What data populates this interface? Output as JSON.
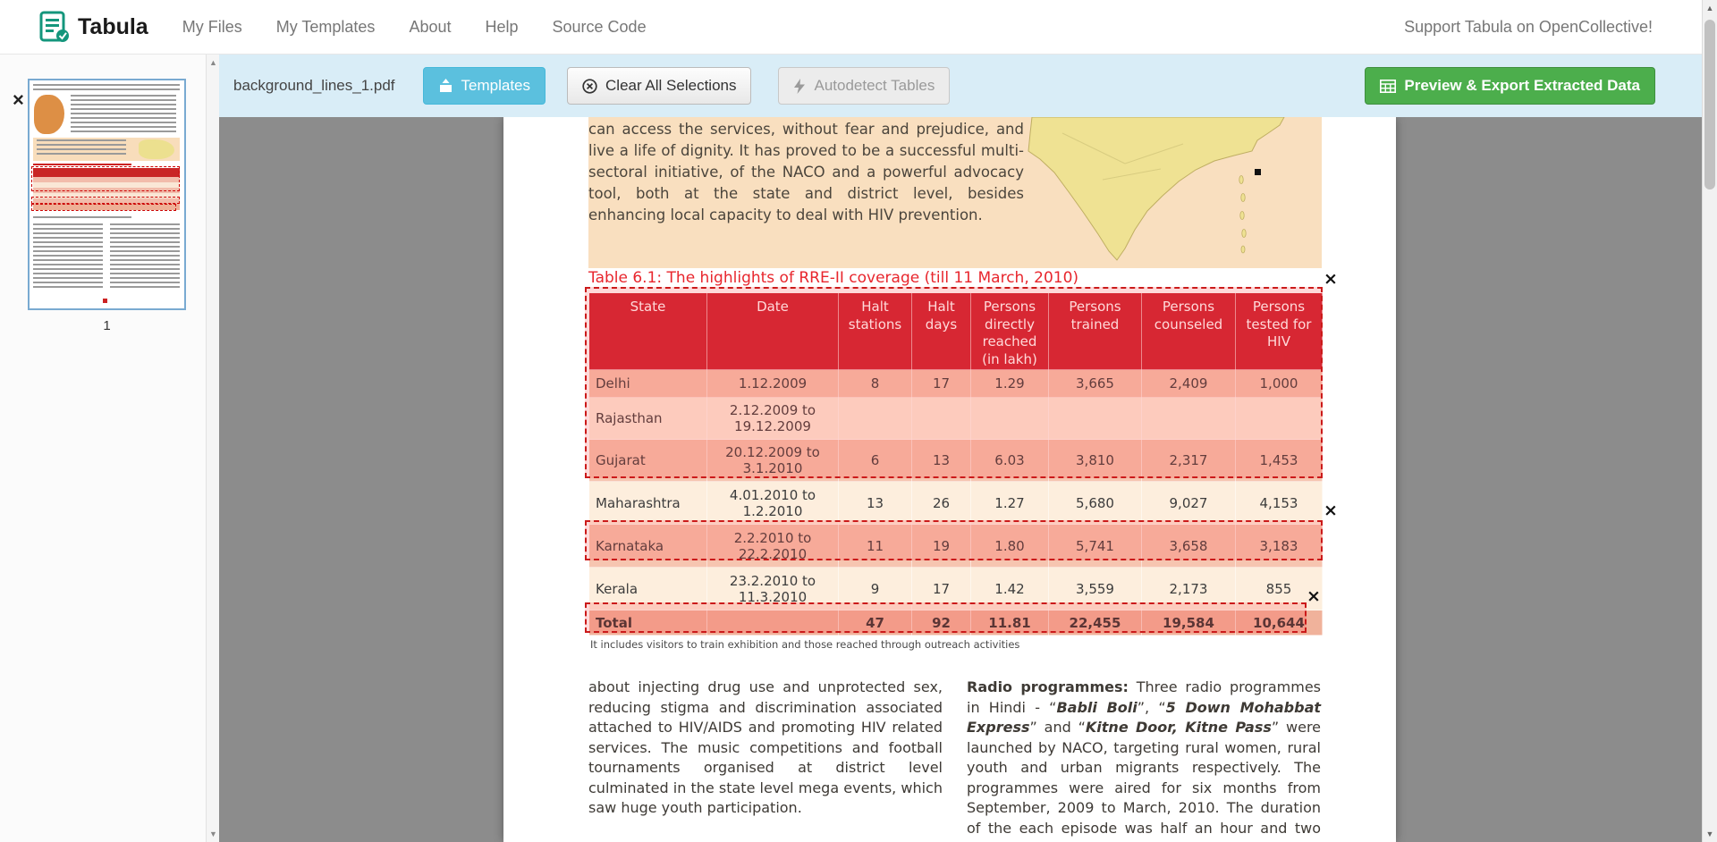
{
  "navbar": {
    "brand": "Tabula",
    "items": [
      {
        "label": "My Files"
      },
      {
        "label": "My Templates"
      },
      {
        "label": "About"
      },
      {
        "label": "Help"
      },
      {
        "label": "Source Code"
      }
    ],
    "right_text": "Support Tabula on OpenCollective!"
  },
  "toolbar": {
    "filename": "background_lines_1.pdf",
    "templates_label": "Templates",
    "clear_label": "Clear All Selections",
    "autodetect_label": "Autodetect Tables",
    "export_label": "Preview & Export Extracted Data"
  },
  "sidebar": {
    "page_number": "1"
  },
  "icons": {
    "close": "×",
    "scroll_up": "▲",
    "scroll_down": "▼"
  },
  "colors": {
    "toolbar_background": "#d9edf7",
    "templates_button": "#5bc0de",
    "export_button": "#4cae4c",
    "table_header_red": "#cd2130",
    "table_title_red": "#e8262d",
    "row_salmon": "#f6c5b0",
    "row_cream": "#fdeedd",
    "row_total": "#f0b29b",
    "selection_red": "#cb1a1a",
    "page_peach": "#f9dfbf",
    "map_yellow": "#efe293"
  },
  "document": {
    "intro_paragraph": "can access the services, without fear and prejudice, and live a life of dignity. It has proved to be a successful multi-sectoral initiative, of the NACO and a powerful advocacy tool, both at the state and district level, besides enhancing local capacity to deal with HIV prevention.",
    "table_title": "Table 6.1: The highlights of RRE-II coverage (till 11 March, 2010)",
    "footnote": "It includes visitors to train exhibition and those reached through outreach activities",
    "left_column_text": "about injecting drug use and unprotected sex, reducing stigma and discrimination associated attached to HIV/AIDS and promoting HIV related services. The music competitions and football tournaments organised at district level culminated in the state level mega events, which saw huge youth participation.",
    "right_column_segments": [
      {
        "text": "Radio programmes:",
        "bold": true
      },
      {
        "text": " Three radio programmes in Hindi - “"
      },
      {
        "text": "Babli Boli",
        "bold": true,
        "italic": true
      },
      {
        "text": "”, “"
      },
      {
        "text": "5 Down Mohabbat Express",
        "bold": true,
        "italic": true
      },
      {
        "text": "” and “"
      },
      {
        "text": "Kitne Door, Kitne Pass",
        "bold": true,
        "italic": true
      },
      {
        "text": "” were launched by NACO, targeting rural women, rural youth and urban migrants respectively. The programmes were aired for six months from September, 2009 to March, 2010. The duration of the each episode was half an hour and two episodes"
      }
    ]
  },
  "table": {
    "headers": [
      "State",
      "Date",
      "Halt stations",
      "Halt days",
      "Persons directly reached (in lakh)",
      "Persons trained",
      "Persons counseled",
      "Persons tested for HIV"
    ],
    "rows": [
      {
        "cells": [
          "Delhi",
          "1.12.2009",
          "8",
          "17",
          "1.29",
          "3,665",
          "2,409",
          "1,000"
        ],
        "shade": "salmon"
      },
      {
        "cells": [
          "Rajasthan",
          "2.12.2009 to 19.12.2009",
          "",
          "",
          "",
          "",
          "",
          ""
        ],
        "shade": "cream"
      },
      {
        "cells": [
          "Gujarat",
          "20.12.2009 to 3.1.2010",
          "6",
          "13",
          "6.03",
          "3,810",
          "2,317",
          "1,453"
        ],
        "shade": "salmon"
      },
      {
        "cells": [
          "Maharashtra",
          "4.01.2010 to 1.2.2010",
          "13",
          "26",
          "1.27",
          "5,680",
          "9,027",
          "4,153"
        ],
        "shade": "cream"
      },
      {
        "cells": [
          "Karnataka",
          "2.2.2010 to 22.2.2010",
          "11",
          "19",
          "1.80",
          "5,741",
          "3,658",
          "3,183"
        ],
        "shade": "salmon"
      },
      {
        "cells": [
          "Kerala",
          "23.2.2010 to 11.3.2010",
          "9",
          "17",
          "1.42",
          "3,559",
          "2,173",
          "855"
        ],
        "shade": "cream"
      },
      {
        "cells": [
          "Total",
          "",
          "47",
          "92",
          "11.81",
          "22,455",
          "19,584",
          "10,644"
        ],
        "shade": "total"
      }
    ]
  }
}
